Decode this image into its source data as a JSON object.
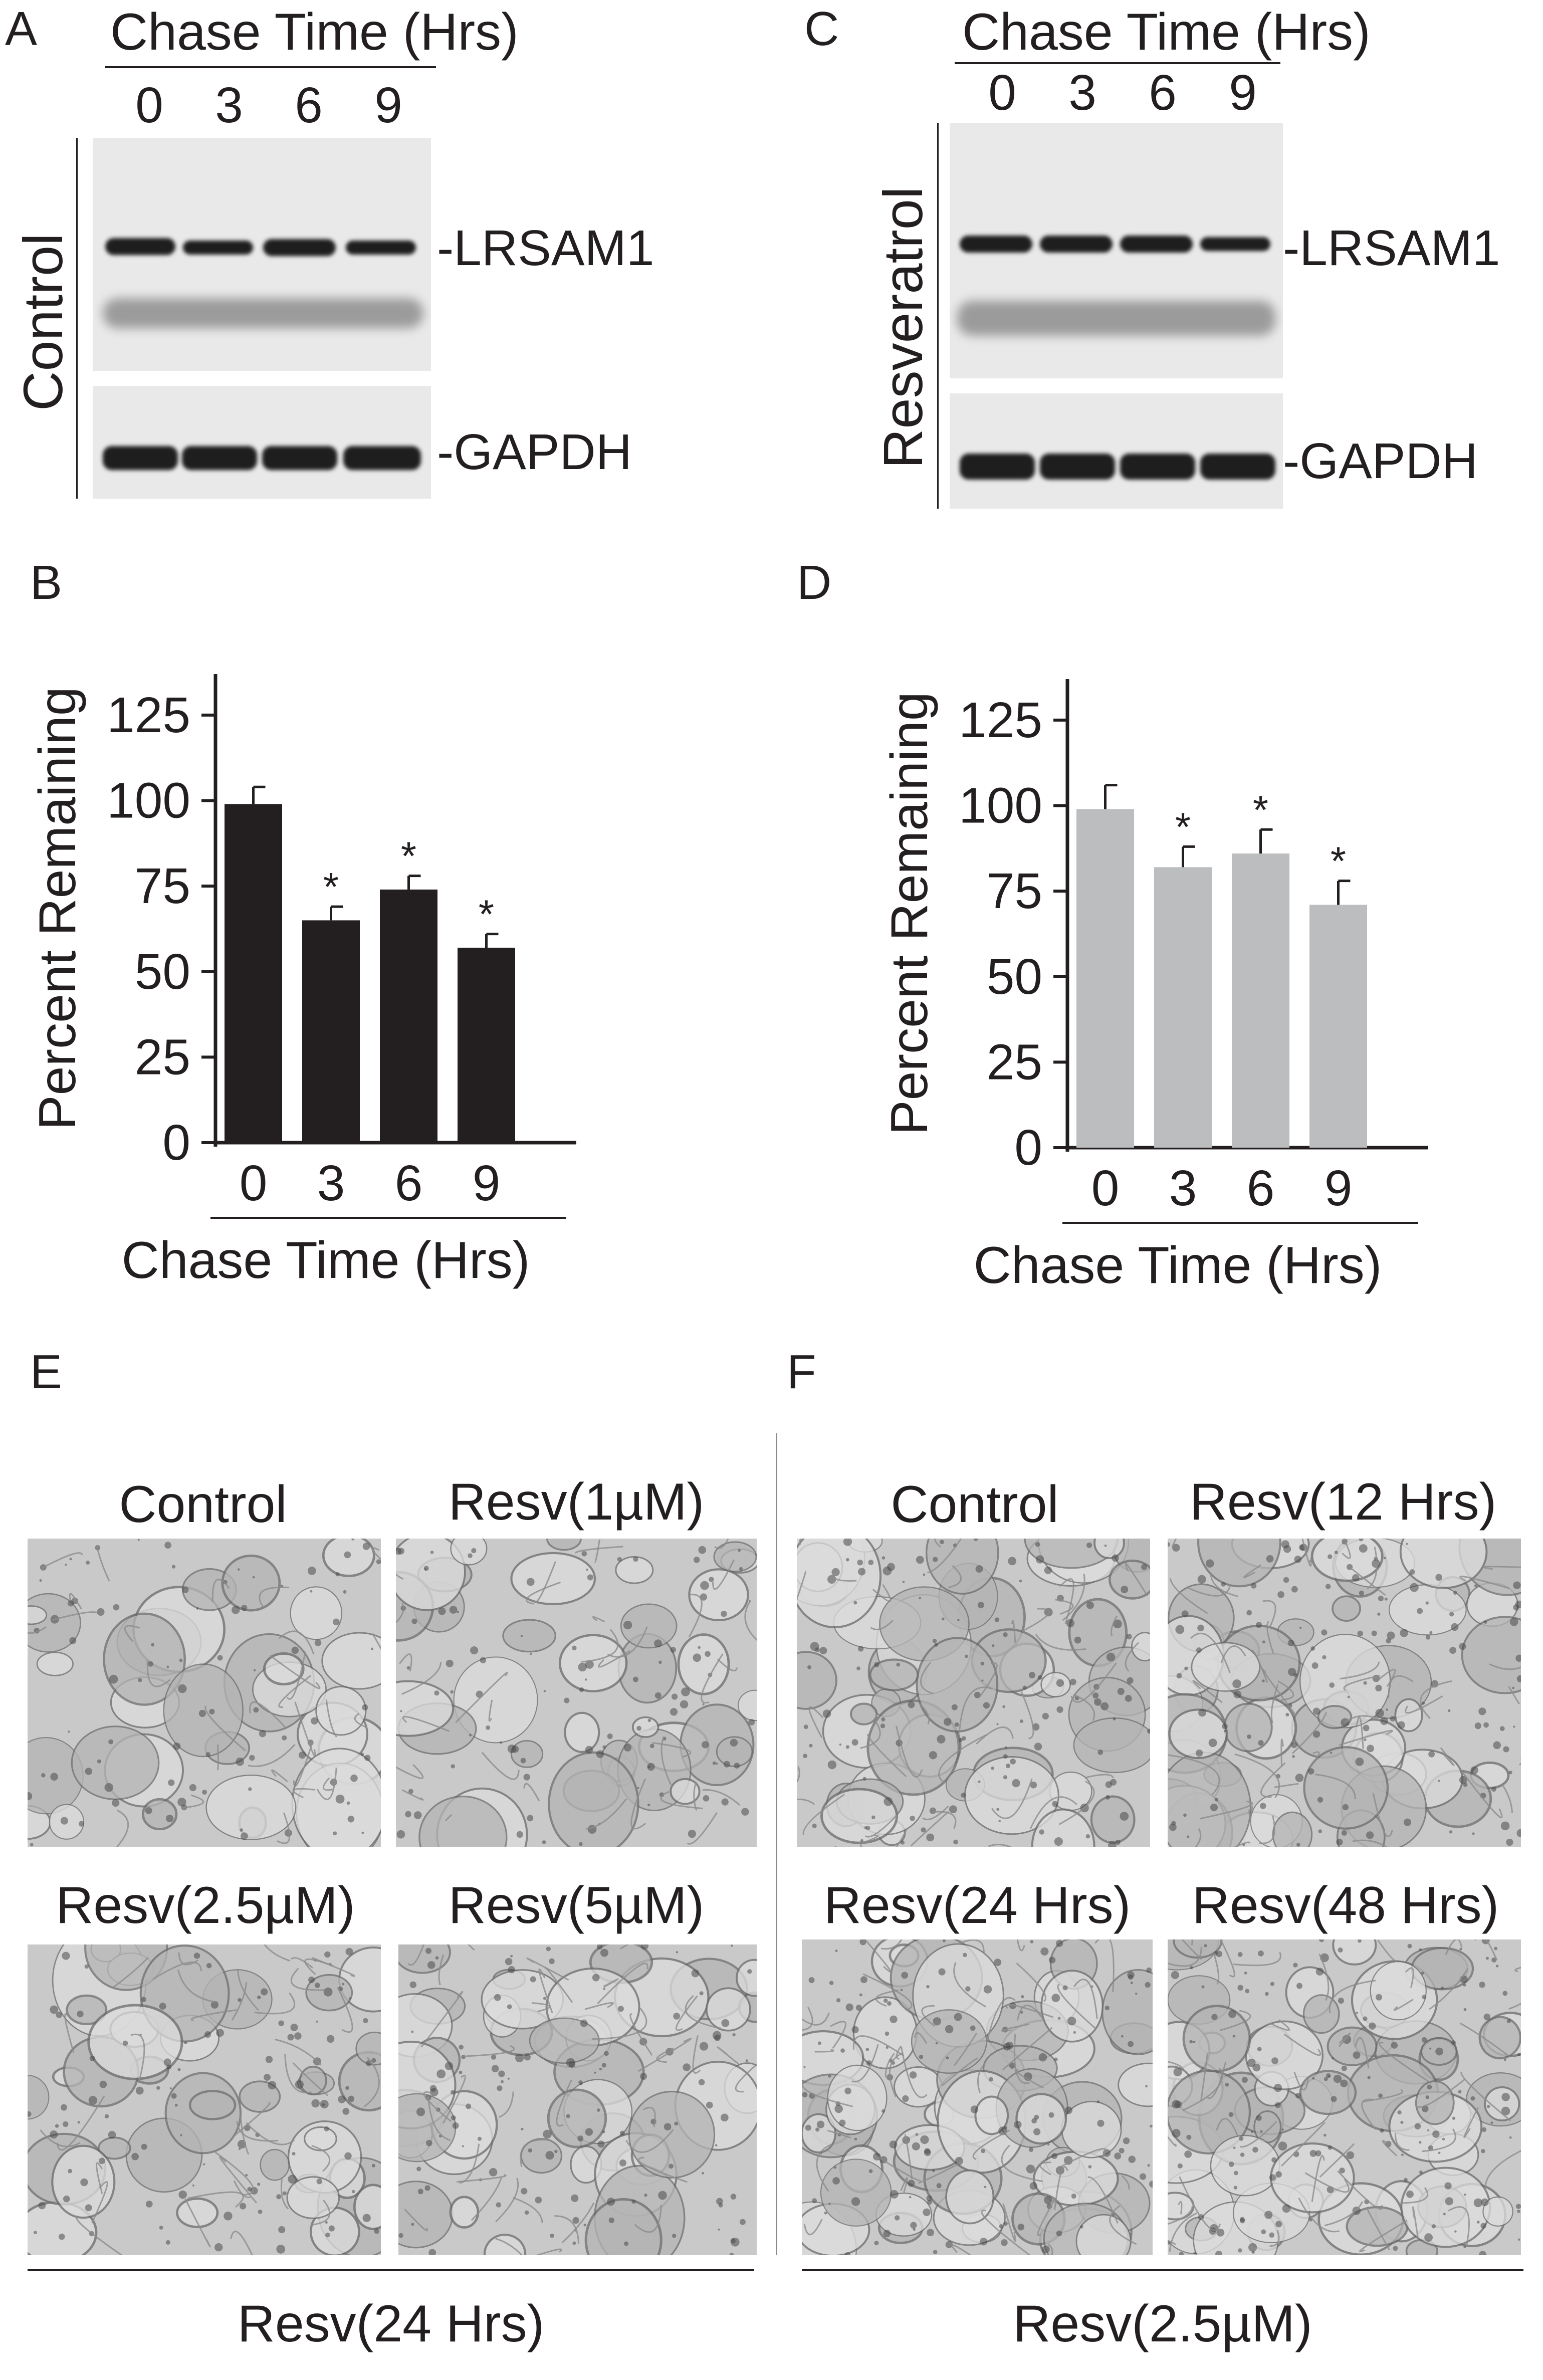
{
  "panels": {
    "A": {
      "letter": "A",
      "header": "Chase Time (Hrs)",
      "lanes": [
        "0",
        "3",
        "6",
        "9"
      ],
      "condition": "Control",
      "bands": [
        "-LRSAM1",
        "-GAPDH"
      ]
    },
    "C": {
      "letter": "C",
      "header": "Chase Time (Hrs)",
      "lanes": [
        "0",
        "3",
        "6",
        "9"
      ],
      "condition": "Resveratrol",
      "bands": [
        "-LRSAM1",
        "-GAPDH"
      ]
    },
    "B": {
      "letter": "B"
    },
    "D": {
      "letter": "D"
    },
    "E": {
      "letter": "E",
      "titles": [
        "Control",
        "Resv(1µM)",
        "Resv(2.5µM)",
        "Resv(5µM)"
      ],
      "footer": "Resv(24 Hrs)"
    },
    "F": {
      "letter": "F",
      "titles": [
        "Control",
        "Resv(12 Hrs)",
        "Resv(24 Hrs)",
        "Resv(48 Hrs)"
      ],
      "footer": "Resv(2.5µM)"
    }
  },
  "chart_data": [
    {
      "panel": "B",
      "type": "bar",
      "categories": [
        "0",
        "3",
        "6",
        "9"
      ],
      "values": [
        99,
        65,
        74,
        57
      ],
      "errors": [
        5,
        4,
        4,
        4
      ],
      "significance": [
        "",
        "*",
        "*",
        "*"
      ],
      "xlabel": "Chase Time (Hrs)",
      "ylabel": "Percent Remaining",
      "yticks": [
        "0",
        "25",
        "50",
        "75",
        "100",
        "125"
      ],
      "ylim": [
        0,
        137
      ],
      "color": "#231f20"
    },
    {
      "panel": "D",
      "type": "bar",
      "categories": [
        "0",
        "3",
        "6",
        "9"
      ],
      "values": [
        99,
        82,
        86,
        71
      ],
      "errors": [
        7,
        6,
        7,
        7
      ],
      "significance": [
        "",
        "*",
        "*",
        "*"
      ],
      "xlabel": "Chase Time (Hrs)",
      "ylabel": "Percent Remaining",
      "yticks": [
        "0",
        "25",
        "50",
        "75",
        "100",
        "125"
      ],
      "ylim": [
        0,
        137
      ],
      "color": "#bcbdbf"
    }
  ]
}
